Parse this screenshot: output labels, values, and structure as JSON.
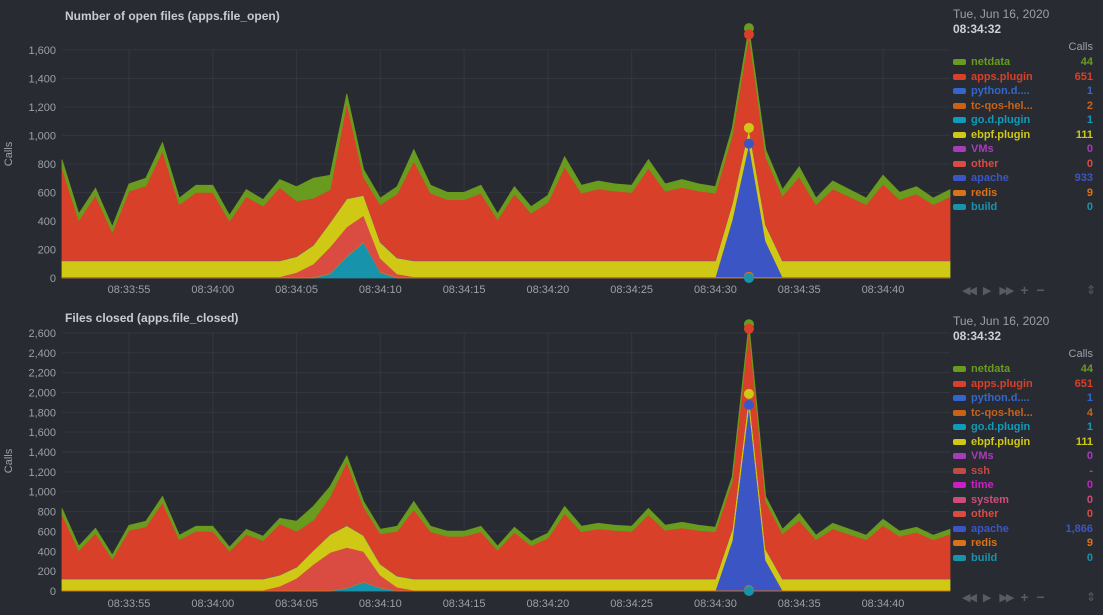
{
  "page": {
    "background": "#282c32",
    "text_muted": "#9aa0a6",
    "text_bright": "#c8ccd1"
  },
  "toolbar": {
    "rewind": "◀◀",
    "play": "▶",
    "fast_forward": "▶▶",
    "zoom_in": "+",
    "zoom_out": "−",
    "resize": "⇕"
  },
  "chart_data": [
    {
      "type": "area",
      "stacked": true,
      "title": "Number of open files (apps.file_open)",
      "ylabel": "Calls",
      "ylim": [
        0,
        1760
      ],
      "ytick_max": 1600,
      "ystep": 200,
      "grid": true,
      "n_points": 54,
      "x_start": "08:33:51",
      "interval_seconds": 1,
      "x_tick_indices": [
        4,
        9,
        14,
        19,
        24,
        29,
        34,
        39,
        44,
        49
      ],
      "x_tick_labels": [
        "08:33:55",
        "08:34:00",
        "08:34:05",
        "08:34:10",
        "08:34:15",
        "08:34:20",
        "08:34:25",
        "08:34:30",
        "08:34:35",
        "08:34:40"
      ],
      "selected_index": 41,
      "marker_series": [
        "netdata",
        "apps.plugin",
        "ebpf.plugin",
        "apache",
        "redis",
        "build"
      ],
      "series": [
        {
          "name": "build",
          "color": "#1793AC",
          "base": 0,
          "spikes": {
            "16": 30,
            "17": 150,
            "18": 250,
            "19": 40
          }
        },
        {
          "name": "redis",
          "color": "#D97218",
          "base": 9
        },
        {
          "name": "apache",
          "color": "#3C55C5",
          "base": 0,
          "spikes": {
            "40": 400,
            "41": 933,
            "42": 250
          }
        },
        {
          "name": "other",
          "color": "#DA4B42",
          "base": 0,
          "spikes": {
            "14": 30,
            "15": 90,
            "16": 180,
            "17": 200,
            "18": 180,
            "19": 90,
            "20": 20
          }
        },
        {
          "name": "VMs",
          "color": "#A83BB8",
          "base": 0
        },
        {
          "name": "ebpf.plugin",
          "color": "#CFC815",
          "base": 111,
          "spikes": {
            "15": 130,
            "16": 170,
            "17": 196,
            "18": 140
          }
        },
        {
          "name": "go.d.plugin",
          "color": "#0F9BBB",
          "base": 1
        },
        {
          "name": "tc-qos-hel...",
          "color": "#C96216",
          "base": 2
        },
        {
          "name": "python.d....",
          "color": "#3366CC",
          "base": 1
        },
        {
          "name": "apps.plugin",
          "color": "#D8402A",
          "values": [
            646,
            281,
            456,
            196,
            486,
            521,
            766,
            391,
            476,
            476,
            276,
            446,
            381,
            511,
            386,
            327,
            227,
            671,
            122,
            261,
            446,
            696,
            471,
            426,
            426,
            471,
            286,
            466,
            331,
            406,
            656,
            471,
            501,
            486,
            476,
            646,
            486,
            511,
            486,
            471,
            476,
            651,
            476,
            451,
            586,
            391,
            501,
            446,
            391,
            536,
            426,
            466,
            391,
            446
          ]
        },
        {
          "name": "netdata",
          "color": "#699B1E",
          "values": [
            60,
            45,
            50,
            40,
            50,
            55,
            60,
            45,
            50,
            50,
            40,
            50,
            45,
            55,
            100,
            140,
            100,
            60,
            55,
            45,
            50,
            80,
            55,
            50,
            50,
            55,
            40,
            50,
            45,
            50,
            70,
            55,
            55,
            50,
            50,
            60,
            50,
            55,
            50,
            45,
            50,
            44,
            50,
            45,
            70,
            45,
            55,
            50,
            45,
            60,
            50,
            50,
            45,
            50
          ]
        }
      ],
      "legend": {
        "date": "Tue, Jun 16, 2020",
        "time": "08:34:32",
        "units": "Calls",
        "items": [
          {
            "name": "netdata",
            "value": "44",
            "color": "#699B1E"
          },
          {
            "name": "apps.plugin",
            "value": "651",
            "color": "#D8402A"
          },
          {
            "name": "python.d....",
            "value": "1",
            "color": "#3366CC"
          },
          {
            "name": "tc-qos-hel...",
            "value": "2",
            "color": "#C96216"
          },
          {
            "name": "go.d.plugin",
            "value": "1",
            "color": "#0F9BBB"
          },
          {
            "name": "ebpf.plugin",
            "value": "111",
            "color": "#CFC815"
          },
          {
            "name": "VMs",
            "value": "0",
            "color": "#A83BB8"
          },
          {
            "name": "other",
            "value": "0",
            "color": "#DA4B42"
          },
          {
            "name": "apache",
            "value": "933",
            "color": "#3C55C5"
          },
          {
            "name": "redis",
            "value": "9",
            "color": "#D97218"
          },
          {
            "name": "build",
            "value": "0",
            "color": "#1793AC"
          }
        ]
      }
    },
    {
      "type": "area",
      "stacked": true,
      "title": "Files closed (apps.file_closed)",
      "ylabel": "Calls",
      "ylim": [
        0,
        2700
      ],
      "ytick_max": 2600,
      "ystep": 200,
      "grid": true,
      "n_points": 54,
      "x_start": "08:33:51",
      "interval_seconds": 1,
      "x_tick_indices": [
        4,
        9,
        14,
        19,
        24,
        29,
        34,
        39,
        44,
        49
      ],
      "x_tick_labels": [
        "08:33:55",
        "08:34:00",
        "08:34:05",
        "08:34:10",
        "08:34:15",
        "08:34:20",
        "08:34:25",
        "08:34:30",
        "08:34:35",
        "08:34:40"
      ],
      "selected_index": 41,
      "marker_series": [
        "netdata",
        "apps.plugin",
        "ebpf.plugin",
        "apache",
        "redis",
        "build"
      ],
      "series": [
        {
          "name": "build",
          "color": "#1793AC",
          "base": 0,
          "spikes": {
            "17": 30,
            "18": 90,
            "19": 30
          }
        },
        {
          "name": "redis",
          "color": "#D97218",
          "base": 9
        },
        {
          "name": "apache",
          "color": "#3C55C5",
          "base": 0,
          "spikes": {
            "40": 500,
            "41": 1866,
            "42": 300
          }
        },
        {
          "name": "other",
          "color": "#DA4B42",
          "base": 0,
          "spikes": {
            "13": 40,
            "14": 120,
            "15": 260,
            "16": 380,
            "17": 400,
            "18": 300,
            "19": 120,
            "20": 30
          }
        },
        {
          "name": "system",
          "color": "#D04C78",
          "base": 0
        },
        {
          "name": "time",
          "color": "#CC1FC4",
          "base": 0
        },
        {
          "name": "ssh",
          "color": "#BE4C44",
          "base": 0
        },
        {
          "name": "VMs",
          "color": "#A83BB8",
          "base": 0
        },
        {
          "name": "ebpf.plugin",
          "color": "#CFC815",
          "base": 111,
          "spikes": {
            "15": 140,
            "16": 180,
            "17": 220,
            "18": 160
          }
        },
        {
          "name": "go.d.plugin",
          "color": "#0F9BBB",
          "base": 1
        },
        {
          "name": "tc-qos-hel...",
          "color": "#C96216",
          "base": 4
        },
        {
          "name": "python.d....",
          "color": "#3366CC",
          "base": 1
        },
        {
          "name": "apps.plugin",
          "color": "#D8402A",
          "values": [
            646,
            281,
            456,
            196,
            486,
            521,
            766,
            391,
            476,
            476,
            276,
            446,
            381,
            511,
            356,
            297,
            377,
            637,
            282,
            301,
            446,
            696,
            471,
            426,
            426,
            471,
            286,
            466,
            331,
            406,
            656,
            471,
            501,
            486,
            476,
            646,
            486,
            511,
            486,
            471,
            476,
            651,
            476,
            451,
            586,
            391,
            501,
            446,
            391,
            536,
            426,
            466,
            391,
            446
          ]
        },
        {
          "name": "netdata",
          "color": "#699B1E",
          "values": [
            60,
            45,
            50,
            40,
            50,
            55,
            60,
            45,
            50,
            50,
            40,
            50,
            45,
            55,
            100,
            140,
            100,
            60,
            55,
            45,
            50,
            80,
            55,
            50,
            50,
            55,
            40,
            50,
            45,
            50,
            70,
            55,
            55,
            50,
            50,
            60,
            50,
            55,
            50,
            45,
            50,
            44,
            50,
            45,
            70,
            45,
            55,
            50,
            45,
            60,
            50,
            50,
            45,
            50
          ]
        }
      ],
      "legend": {
        "date": "Tue, Jun 16, 2020",
        "time": "08:34:32",
        "units": "Calls",
        "items": [
          {
            "name": "netdata",
            "value": "44",
            "color": "#699B1E"
          },
          {
            "name": "apps.plugin",
            "value": "651",
            "color": "#D8402A"
          },
          {
            "name": "python.d....",
            "value": "1",
            "color": "#3366CC"
          },
          {
            "name": "tc-qos-hel...",
            "value": "4",
            "color": "#C96216"
          },
          {
            "name": "go.d.plugin",
            "value": "1",
            "color": "#0F9BBB"
          },
          {
            "name": "ebpf.plugin",
            "value": "111",
            "color": "#CFC815"
          },
          {
            "name": "VMs",
            "value": "0",
            "color": "#A83BB8"
          },
          {
            "name": "ssh",
            "value": "-",
            "color": "#BE4C44"
          },
          {
            "name": "time",
            "value": "0",
            "color": "#CC1FC4"
          },
          {
            "name": "system",
            "value": "0",
            "color": "#D04C78"
          },
          {
            "name": "other",
            "value": "0",
            "color": "#DA4B42"
          },
          {
            "name": "apache",
            "value": "1,866",
            "color": "#3C55C5"
          },
          {
            "name": "redis",
            "value": "9",
            "color": "#D97218"
          },
          {
            "name": "build",
            "value": "0",
            "color": "#1793AC"
          }
        ]
      }
    }
  ]
}
